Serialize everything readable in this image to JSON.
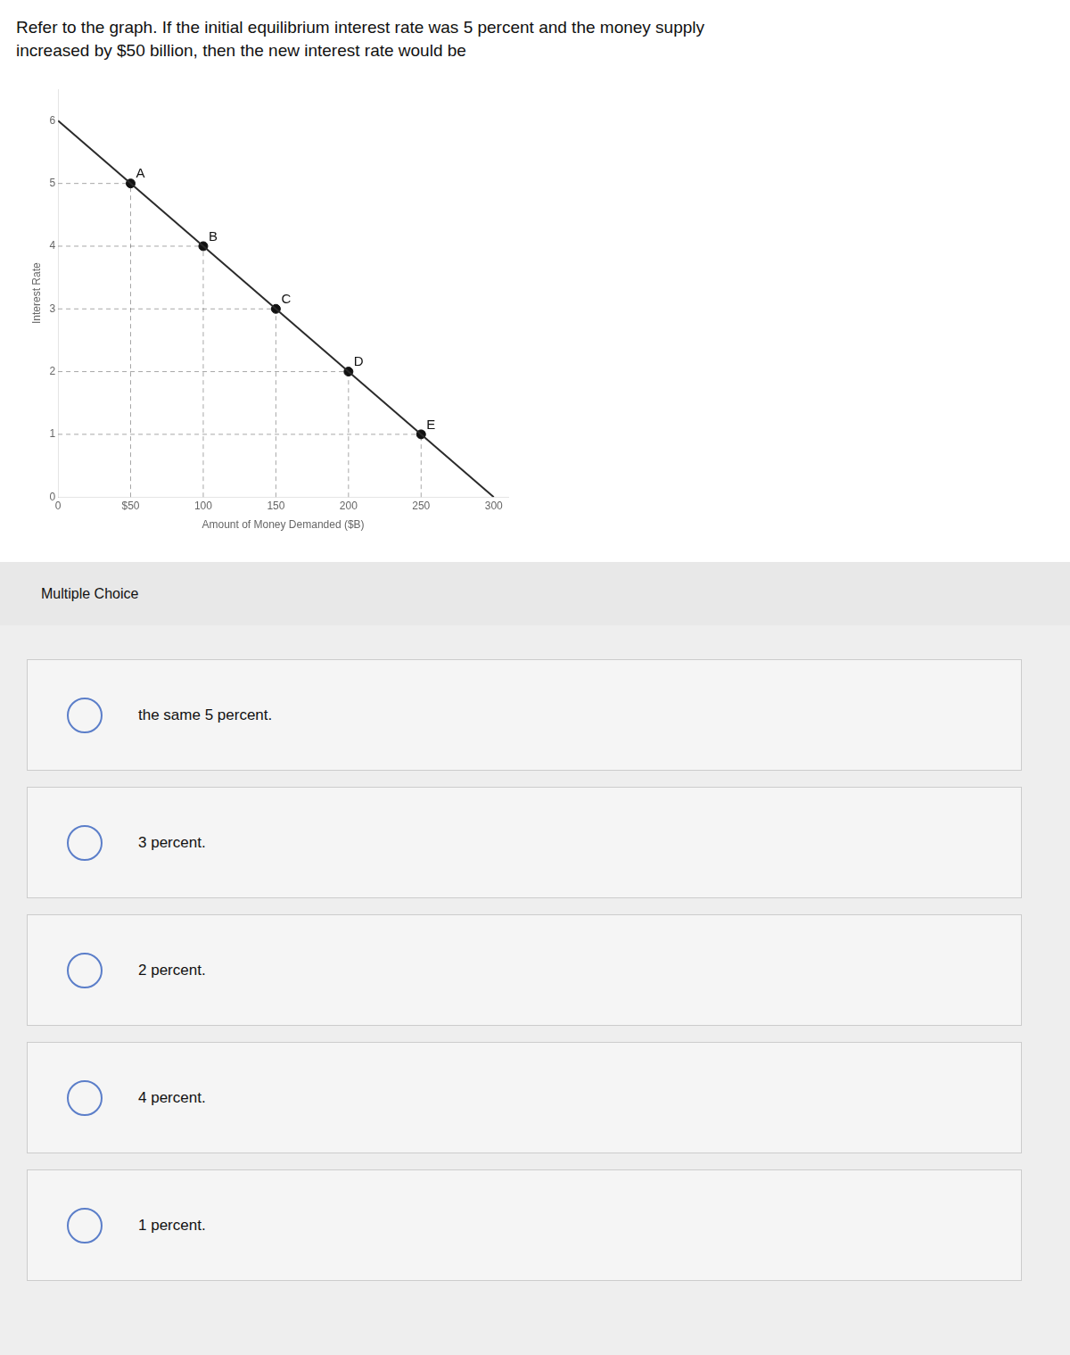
{
  "chart_data": {
    "type": "line",
    "title": [
      "Refer to the graph. If the initial equilibrium interest rate was 5 percent and the money supply",
      "increased by $50 billion, then the new interest rate would be"
    ],
    "x_label": "Amount of Money Demanded ($B)",
    "y_label": "Interest Rate",
    "series": [
      {
        "type": "line",
        "x": [
          0,
          300
        ],
        "values": [
          6,
          0
        ],
        "color": "#2a2a2a"
      },
      {
        "type": "scatter",
        "x": [
          50,
          100,
          150,
          200,
          250
        ],
        "values": [
          5,
          4,
          3,
          2,
          1
        ],
        "color": "#111111",
        "marker": "circle"
      }
    ],
    "annotations": [
      {
        "text": "A",
        "x": 50,
        "y": 5
      },
      {
        "text": "B",
        "x": 100,
        "y": 4
      },
      {
        "text": "C",
        "x": 150,
        "y": 3
      },
      {
        "text": "D",
        "x": 200,
        "y": 2
      },
      {
        "text": "E",
        "x": 250,
        "y": 1
      }
    ],
    "xlim": [
      0,
      310
    ],
    "xticks": [
      0,
      {
        "value": 50,
        "label": "$50"
      },
      100,
      150,
      200,
      250,
      300
    ],
    "ylim": [
      0,
      6.5
    ],
    "yticks": [
      0,
      1,
      2,
      3,
      4,
      5,
      6
    ],
    "grid": false
  },
  "multiple_choice": {
    "heading": "Multiple Choice",
    "options": [
      "the same 5 percent.",
      "3 percent.",
      "2 percent.",
      "4 percent.",
      "1 percent."
    ]
  }
}
